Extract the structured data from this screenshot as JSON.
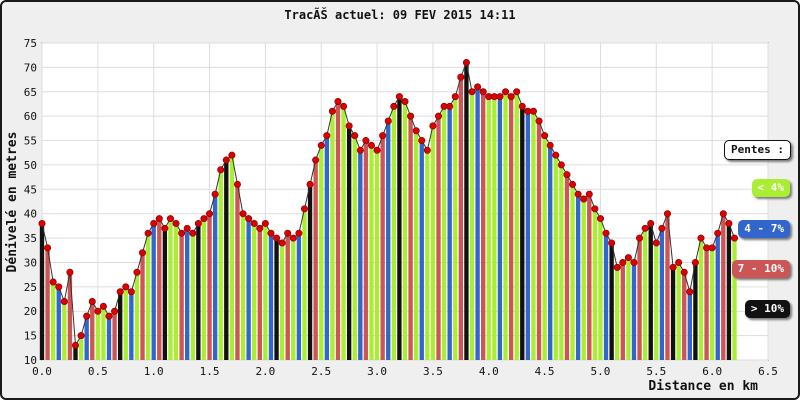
{
  "chart_data": {
    "type": "bar",
    "title": "TracÃŠ actuel: 09 FEV 2015 14:11",
    "xlabel": "Distance en km",
    "ylabel": "Dénivelé en metres",
    "xlim": [
      0,
      6.5
    ],
    "ylim": [
      10,
      75
    ],
    "x_ticks": [
      "0.0",
      "0.5",
      "1.0",
      "1.5",
      "2.0",
      "2.5",
      "3.0",
      "3.5",
      "4.0",
      "4.5",
      "5.0",
      "5.5",
      "6.0",
      "6.5"
    ],
    "y_ticks": [
      "10",
      "15",
      "20",
      "25",
      "30",
      "35",
      "40",
      "45",
      "50",
      "55",
      "60",
      "65",
      "70",
      "75"
    ],
    "grid": true,
    "x": [
      0.0,
      0.05,
      0.1,
      0.15,
      0.2,
      0.25,
      0.3,
      0.35,
      0.4,
      0.45,
      0.5,
      0.55,
      0.6,
      0.65,
      0.7,
      0.75,
      0.8,
      0.85,
      0.9,
      0.95,
      1.0,
      1.05,
      1.1,
      1.15,
      1.2,
      1.25,
      1.3,
      1.35,
      1.4,
      1.45,
      1.5,
      1.55,
      1.6,
      1.65,
      1.7,
      1.75,
      1.8,
      1.85,
      1.9,
      1.95,
      2.0,
      2.05,
      2.1,
      2.15,
      2.2,
      2.25,
      2.3,
      2.35,
      2.4,
      2.45,
      2.5,
      2.55,
      2.6,
      2.65,
      2.7,
      2.75,
      2.8,
      2.85,
      2.9,
      2.95,
      3.0,
      3.05,
      3.1,
      3.15,
      3.2,
      3.25,
      3.3,
      3.35,
      3.4,
      3.45,
      3.5,
      3.55,
      3.6,
      3.65,
      3.7,
      3.75,
      3.8,
      3.85,
      3.9,
      3.95,
      4.0,
      4.05,
      4.1,
      4.15,
      4.2,
      4.25,
      4.3,
      4.35,
      4.4,
      4.45,
      4.5,
      4.55,
      4.6,
      4.65,
      4.7,
      4.75,
      4.8,
      4.85,
      4.9,
      4.95,
      5.0,
      5.05,
      5.1,
      5.15,
      5.2,
      5.25,
      5.3,
      5.35,
      5.4,
      5.45,
      5.5,
      5.55,
      5.6,
      5.65,
      5.7,
      5.75,
      5.8,
      5.85,
      5.9,
      5.95,
      6.0,
      6.05,
      6.1,
      6.15,
      6.2
    ],
    "values": [
      38,
      33,
      26,
      25,
      22,
      28,
      13,
      15,
      19,
      22,
      20,
      21,
      19,
      20,
      24,
      25,
      24,
      28,
      32,
      36,
      38,
      39,
      37,
      39,
      38,
      36,
      37,
      36,
      38,
      39,
      40,
      44,
      49,
      51,
      52,
      46,
      40,
      39,
      38,
      37,
      38,
      36,
      35,
      34,
      36,
      35,
      36,
      41,
      46,
      51,
      54,
      56,
      61,
      63,
      62,
      58,
      56,
      53,
      55,
      54,
      53,
      56,
      59,
      62,
      64,
      63,
      60,
      57,
      55,
      53,
      58,
      60,
      62,
      62,
      64,
      68,
      71,
      65,
      66,
      65,
      64,
      64,
      64,
      65,
      64,
      65,
      62,
      61,
      61,
      59,
      56,
      54,
      52,
      50,
      48,
      46,
      44,
      43,
      44,
      41,
      39,
      36,
      34,
      29,
      30,
      31,
      30,
      35,
      37,
      38,
      34,
      37,
      40,
      29,
      30,
      28,
      24,
      30,
      35,
      33,
      33,
      36,
      40,
      38,
      35
    ],
    "bar_colors": [
      "#111111",
      "#cc5555",
      "#aaee33",
      "#3366cc",
      "#aaee33",
      "#cc5555",
      "#111111",
      "#aaee33",
      "#3366cc",
      "#cc5555",
      "#aaee33",
      "#aaee33",
      "#3366cc",
      "#cc5555",
      "#111111",
      "#aaee33",
      "#3366cc",
      "#aaee33",
      "#cc5555",
      "#aaee33",
      "#3366cc",
      "#cc5555",
      "#111111",
      "#aaee33",
      "#aaee33",
      "#cc5555",
      "#3366cc",
      "#aaee33",
      "#111111",
      "#aaee33",
      "#cc5555",
      "#3366cc",
      "#aaee33",
      "#111111",
      "#aaee33",
      "#cc5555",
      "#aaee33",
      "#3366cc",
      "#aaee33",
      "#cc5555",
      "#aaee33",
      "#3366cc",
      "#111111",
      "#aaee33",
      "#cc5555",
      "#aaee33",
      "#3366cc",
      "#aaee33",
      "#111111",
      "#cc5555",
      "#aaee33",
      "#3366cc",
      "#aaee33",
      "#cc5555",
      "#aaee33",
      "#111111",
      "#aaee33",
      "#3366cc",
      "#cc5555",
      "#aaee33",
      "#aaee33",
      "#cc5555",
      "#3366cc",
      "#aaee33",
      "#111111",
      "#aaee33",
      "#cc5555",
      "#aaee33",
      "#3366cc",
      "#aaee33",
      "#aaee33",
      "#cc5555",
      "#aaee33",
      "#3366cc",
      "#aaee33",
      "#cc5555",
      "#111111",
      "#aaee33",
      "#3366cc",
      "#cc5555",
      "#aaee33",
      "#aaee33",
      "#3366cc",
      "#aaee33",
      "#cc5555",
      "#aaee33",
      "#111111",
      "#3366cc",
      "#aaee33",
      "#cc5555",
      "#aaee33",
      "#3366cc",
      "#aaee33",
      "#aaee33",
      "#cc5555",
      "#aaee33",
      "#3366cc",
      "#aaee33",
      "#cc5555",
      "#aaee33",
      "#aaee33",
      "#3366cc",
      "#111111",
      "#aaee33",
      "#cc5555",
      "#aaee33",
      "#3366cc",
      "#cc5555",
      "#aaee33",
      "#111111",
      "#aaee33",
      "#3366cc",
      "#cc5555",
      "#111111",
      "#aaee33",
      "#cc5555",
      "#3366cc",
      "#111111",
      "#aaee33",
      "#cc5555",
      "#aaee33",
      "#3366cc",
      "#cc5555",
      "#111111",
      "#aaee33"
    ],
    "marker_color": "#dd0000",
    "legend": {
      "title": "Pentes :",
      "position": "right",
      "items": [
        {
          "label": "< 4%",
          "color": "#aaee33",
          "text_color": "#ffffff"
        },
        {
          "label": "4 - 7%",
          "color": "#3366cc",
          "text_color": "#ffffff"
        },
        {
          "label": "7 - 10%",
          "color": "#cc5555",
          "text_color": "#ffffff"
        },
        {
          "label": "> 10%",
          "color": "#111111",
          "text_color": "#ffffff"
        }
      ]
    }
  }
}
